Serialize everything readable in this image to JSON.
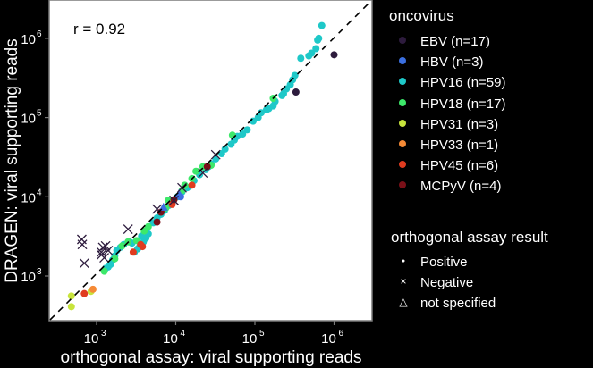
{
  "chart_data": {
    "type": "scatter",
    "title": "",
    "annotation": "r = 0.92",
    "xlabel": "orthogonal assay: viral supporting reads",
    "ylabel": "DRAGEN: viral supporting reads",
    "xscale": "log10",
    "yscale": "log10",
    "xlim": [
      300,
      2500000
    ],
    "ylim": [
      220,
      2200000
    ],
    "x_ticks": [
      {
        "value": 1000,
        "label": "10^3"
      },
      {
        "value": 10000,
        "label": "10^4"
      },
      {
        "value": 100000,
        "label": "10^5"
      },
      {
        "value": 1000000,
        "label": "10^6"
      }
    ],
    "y_ticks": [
      {
        "value": 1000,
        "label": "10^3"
      },
      {
        "value": 10000,
        "label": "10^4"
      },
      {
        "value": 100000,
        "label": "10^5"
      },
      {
        "value": 1000000,
        "label": "10^6"
      }
    ],
    "reference_line": "y = x (dashed)",
    "grid": false,
    "legend_position": "right",
    "series": [
      {
        "name": "EBV (n=17)",
        "color": "#2d1b3d",
        "points": [
          {
            "x": 1000000,
            "y": 620000,
            "shape": "circle"
          },
          {
            "x": 330000,
            "y": 210000,
            "shape": "circle"
          },
          {
            "x": 650,
            "y": 2900,
            "shape": "x"
          },
          {
            "x": 660,
            "y": 2500,
            "shape": "x"
          },
          {
            "x": 700,
            "y": 1450,
            "shape": "x"
          },
          {
            "x": 1150,
            "y": 2000,
            "shape": "x"
          },
          {
            "x": 1200,
            "y": 2300,
            "shape": "x"
          },
          {
            "x": 1250,
            "y": 1700,
            "shape": "x"
          },
          {
            "x": 1300,
            "y": 2400,
            "shape": "x"
          },
          {
            "x": 1150,
            "y": 1850,
            "shape": "x"
          },
          {
            "x": 1400,
            "y": 2100,
            "shape": "x"
          },
          {
            "x": 2500,
            "y": 3900,
            "shape": "x"
          },
          {
            "x": 5800,
            "y": 7000,
            "shape": "x"
          },
          {
            "x": 9500,
            "y": 9000,
            "shape": "x"
          },
          {
            "x": 12000,
            "y": 13000,
            "shape": "x"
          },
          {
            "x": 22000,
            "y": 20000,
            "shape": "x"
          },
          {
            "x": 32000,
            "y": 34000,
            "shape": "x"
          }
        ]
      },
      {
        "name": "HBV (n=3)",
        "color": "#3b6fe0",
        "points": [
          {
            "x": 7000,
            "y": 7400,
            "shape": "triangle"
          },
          {
            "x": 11000,
            "y": 11000,
            "shape": "triangle"
          },
          {
            "x": 11500,
            "y": 10000,
            "shape": "circle"
          }
        ]
      },
      {
        "name": "HPV16 (n=59)",
        "color": "#1ec8c8",
        "points": [
          {
            "x": 700000,
            "y": 1450000
          },
          {
            "x": 640000,
            "y": 1000000
          },
          {
            "x": 620000,
            "y": 950000
          },
          {
            "x": 590000,
            "y": 740000
          },
          {
            "x": 520000,
            "y": 650000
          },
          {
            "x": 480000,
            "y": 600000
          },
          {
            "x": 380000,
            "y": 560000
          },
          {
            "x": 320000,
            "y": 340000
          },
          {
            "x": 300000,
            "y": 300000
          },
          {
            "x": 280000,
            "y": 260000
          },
          {
            "x": 250000,
            "y": 230000
          },
          {
            "x": 230000,
            "y": 200000
          },
          {
            "x": 220000,
            "y": 190000
          },
          {
            "x": 180000,
            "y": 160000
          },
          {
            "x": 170000,
            "y": 140000
          },
          {
            "x": 150000,
            "y": 130000
          },
          {
            "x": 140000,
            "y": 125000
          },
          {
            "x": 120000,
            "y": 115000
          },
          {
            "x": 110000,
            "y": 100000
          },
          {
            "x": 95000,
            "y": 90000
          },
          {
            "x": 80000,
            "y": 70000
          },
          {
            "x": 70000,
            "y": 62000
          },
          {
            "x": 55000,
            "y": 52000
          },
          {
            "x": 50000,
            "y": 46000
          },
          {
            "x": 42000,
            "y": 40000
          },
          {
            "x": 38000,
            "y": 35000
          },
          {
            "x": 32000,
            "y": 30000
          },
          {
            "x": 28000,
            "y": 26000
          },
          {
            "x": 24000,
            "y": 22000
          },
          {
            "x": 20000,
            "y": 19000
          },
          {
            "x": 17000,
            "y": 16000
          },
          {
            "x": 14000,
            "y": 13000
          },
          {
            "x": 12000,
            "y": 11500
          },
          {
            "x": 10500,
            "y": 10000
          },
          {
            "x": 9000,
            "y": 8500
          },
          {
            "x": 8200,
            "y": 7800
          },
          {
            "x": 7200,
            "y": 6700
          },
          {
            "x": 6500,
            "y": 6000
          },
          {
            "x": 5800,
            "y": 5400
          },
          {
            "x": 5200,
            "y": 4700
          },
          {
            "x": 4500,
            "y": 3400
          },
          {
            "x": 4200,
            "y": 3000
          },
          {
            "x": 3900,
            "y": 2700
          },
          {
            "x": 3500,
            "y": 2350
          },
          {
            "x": 3300,
            "y": 2200
          },
          {
            "x": 3000,
            "y": 2000
          },
          {
            "x": 2200,
            "y": 2500
          },
          {
            "x": 2000,
            "y": 2300
          },
          {
            "x": 1800,
            "y": 2100
          },
          {
            "x": 1700,
            "y": 1800
          },
          {
            "x": 1600,
            "y": 1600
          },
          {
            "x": 1500,
            "y": 1400
          },
          {
            "x": 1400,
            "y": 1300
          },
          {
            "x": 1300,
            "y": 1250
          },
          {
            "x": 2600,
            "y": 2700
          },
          {
            "x": 2800,
            "y": 2600
          },
          {
            "x": 3700,
            "y": 3200
          },
          {
            "x": 60000,
            "y": 58000
          },
          {
            "x": 26000,
            "y": 24000
          }
        ]
      },
      {
        "name": "HPV18 (n=17)",
        "color": "#3de86a",
        "points": [
          {
            "x": 170000,
            "y": 175000
          },
          {
            "x": 52000,
            "y": 60000
          },
          {
            "x": 22000,
            "y": 24000
          },
          {
            "x": 18000,
            "y": 21000
          },
          {
            "x": 16000,
            "y": 17000
          },
          {
            "x": 13000,
            "y": 14000
          },
          {
            "x": 12000,
            "y": 12000
          },
          {
            "x": 8000,
            "y": 9000
          },
          {
            "x": 7500,
            "y": 7200
          },
          {
            "x": 4500,
            "y": 4200
          },
          {
            "x": 4000,
            "y": 3700
          },
          {
            "x": 3200,
            "y": 2800
          },
          {
            "x": 2500,
            "y": 2700
          },
          {
            "x": 1700,
            "y": 1650
          },
          {
            "x": 1250,
            "y": 1150
          },
          {
            "x": 2100,
            "y": 2400
          },
          {
            "x": 28000,
            "y": 25000
          }
        ]
      },
      {
        "name": "HPV31 (n=3)",
        "color": "#c8e43c",
        "points": [
          {
            "x": 480,
            "y": 560
          },
          {
            "x": 480,
            "y": 410
          },
          {
            "x": 850,
            "y": 640
          }
        ]
      },
      {
        "name": "HPV33 (n=1)",
        "color": "#f58a36",
        "points": [
          {
            "x": 900,
            "y": 680
          }
        ]
      },
      {
        "name": "HPV45 (n=6)",
        "color": "#e03c20",
        "points": [
          {
            "x": 700,
            "y": 600
          },
          {
            "x": 2900,
            "y": 2000
          },
          {
            "x": 3800,
            "y": 2350
          },
          {
            "x": 3600,
            "y": 2500
          },
          {
            "x": 16000,
            "y": 14000
          },
          {
            "x": 9000,
            "y": 8000
          }
        ]
      },
      {
        "name": "MCPyV (n=4)",
        "color": "#7a1018",
        "points": [
          {
            "x": 5800,
            "y": 4800
          },
          {
            "x": 6500,
            "y": 6400
          },
          {
            "x": 9500,
            "y": 9200
          },
          {
            "x": 25000,
            "y": 24000
          }
        ]
      }
    ],
    "shape_legend": {
      "title": "orthogonal assay result",
      "items": [
        {
          "label": "Positive",
          "shape": "circle"
        },
        {
          "label": "Negative",
          "shape": "x"
        },
        {
          "label": "not specified",
          "shape": "triangle"
        }
      ]
    }
  },
  "legend": {
    "color_title": "oncovirus",
    "shape_title": "orthogonal assay result"
  }
}
